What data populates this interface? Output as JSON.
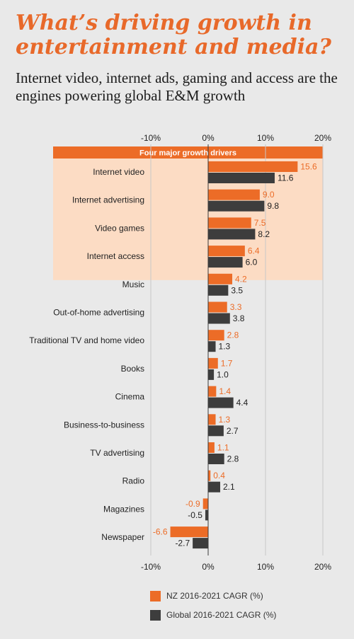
{
  "title": "What’s driving growth in entertainment and media?",
  "subtitle": "Internet video, internet ads, gaming and access are the engines powering global E&M growth",
  "colors": {
    "nz": "#ec6c27",
    "global": "#3d3d3d",
    "highlight_bg": "#fcdcc4",
    "highlight_header": "#ec6c27",
    "grid": "#c8c8c8",
    "axis": "#3a3a3a"
  },
  "chart_data": {
    "type": "bar",
    "orientation": "horizontal",
    "highlight_label": "Four major growth drivers",
    "highlight_count": 4,
    "xlim": [
      -10,
      20
    ],
    "xticks": [
      "-10%",
      "0%",
      "10%",
      "20%"
    ],
    "categories": [
      "Internet video",
      "Internet advertising",
      "Video games",
      "Internet access",
      "Music",
      "Out-of-home advertising",
      "Traditional TV and home video",
      "Books",
      "Cinema",
      "Business-to-business",
      "TV advertising",
      "Radio",
      "Magazines",
      "Newspaper"
    ],
    "series": [
      {
        "name": "NZ 2016-2021 CAGR (%)",
        "values": [
          15.6,
          9.0,
          7.5,
          6.4,
          4.2,
          3.3,
          2.8,
          1.7,
          1.4,
          1.3,
          1.1,
          0.4,
          -0.9,
          -6.6
        ],
        "labels": [
          "15.6",
          "9.0",
          "7.5",
          "6.4",
          "4.2",
          "3.3",
          "2.8",
          "1.7",
          "1.4",
          "1.3",
          "1.1",
          "0.4",
          "-0.9",
          "-6.6"
        ]
      },
      {
        "name": "Global 2016-2021 CAGR (%)",
        "values": [
          11.6,
          9.8,
          8.2,
          6.0,
          3.5,
          3.8,
          1.3,
          1.0,
          4.4,
          2.7,
          2.8,
          2.1,
          -0.5,
          -2.7
        ],
        "labels": [
          "11.6",
          "9.8",
          "8.2",
          "6.0",
          "3.5",
          "3.8",
          "1.3",
          "1.0",
          "4.4",
          "2.7",
          "2.8",
          "2.1",
          "-0.5",
          "-2.7"
        ]
      }
    ]
  },
  "legend": {
    "nz": "NZ 2016-2021 CAGR (%)",
    "global": "Global 2016-2021 CAGR (%)"
  }
}
